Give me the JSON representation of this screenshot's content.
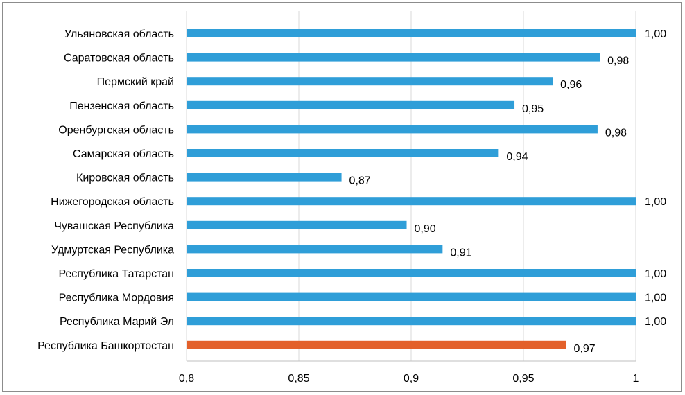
{
  "chart_data": {
    "type": "bar",
    "orientation": "horizontal",
    "title": "",
    "xlabel": "",
    "ylabel": "",
    "xlim": [
      0.8,
      1.0
    ],
    "xticks": [
      0.8,
      0.85,
      0.9,
      0.95,
      1.0
    ],
    "xtick_labels": [
      "0,8",
      "0,85",
      "0,9",
      "0,95",
      "1"
    ],
    "grid": "vertical",
    "legend": "none",
    "categories": [
      "Ульяновская область",
      "Саратовская область",
      "Пермский край",
      "Пензенская область",
      "Оренбургская область",
      "Самарская область",
      "Кировская область",
      "Нижегородская область",
      "Чувашская Республика",
      "Удмуртская Республика",
      "Республика Татарстан",
      "Республика Мордовия",
      "Республика Марий Эл",
      "Республика Башкортостан"
    ],
    "values": [
      1.0,
      0.984,
      0.963,
      0.946,
      0.983,
      0.939,
      0.869,
      1.0,
      0.898,
      0.914,
      1.0,
      1.0,
      1.0,
      0.969
    ],
    "data_labels": [
      "1,00",
      "0,98",
      "0,96",
      "0,95",
      "0,98",
      "0,94",
      "0,87",
      "1,00",
      "0,90",
      "0,91",
      "1,00",
      "1,00",
      "1,00",
      "0,97"
    ],
    "highlight_index": 13,
    "colors": {
      "bar": "#2f9ed8",
      "highlight": "#e3602a",
      "grid": "#d9d9d9",
      "axis": "#bfbfbf",
      "frame": "#8c8c8c"
    }
  }
}
